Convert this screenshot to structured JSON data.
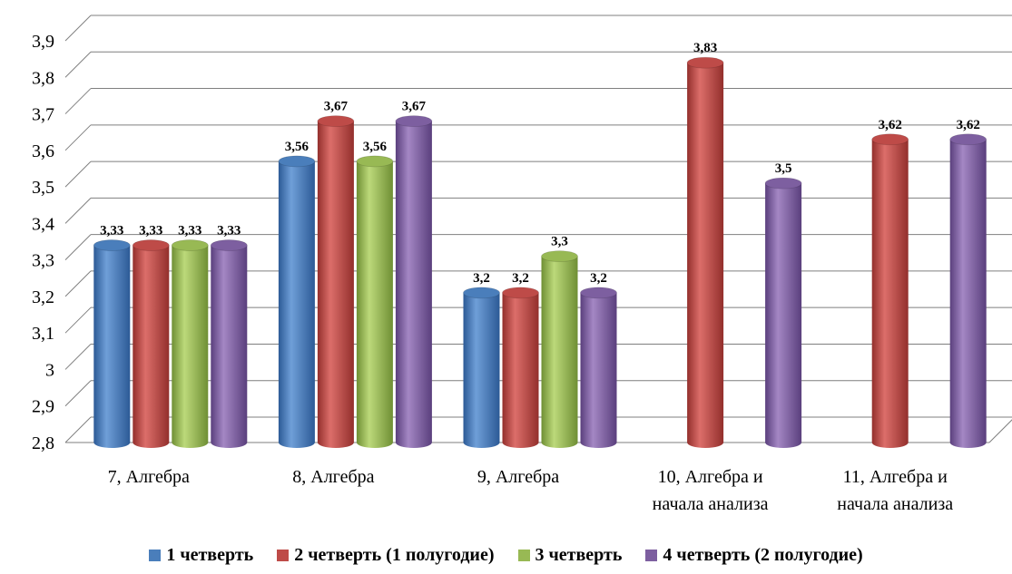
{
  "chart_data": {
    "type": "bar",
    "categories": [
      [
        "7, Алгебра"
      ],
      [
        "8, Алгебра"
      ],
      [
        "9, Алгебра"
      ],
      [
        "10, Алгебра и",
        "начала анализа"
      ],
      [
        "11, Алгебра и",
        "начала анализа"
      ]
    ],
    "series": [
      {
        "name": "1 четверть",
        "color": "#4a7ebb",
        "values": [
          3.33,
          3.56,
          3.2,
          null,
          null
        ],
        "labels": [
          "3,33",
          "3,56",
          "3,2",
          "",
          ""
        ]
      },
      {
        "name": "2 четверть (1 полугодие)",
        "color": "#be4b48",
        "values": [
          3.33,
          3.67,
          3.2,
          3.83,
          3.62
        ],
        "labels": [
          "3,33",
          "3,67",
          "3,2",
          "3,83",
          "3,62"
        ]
      },
      {
        "name": "3 четверть",
        "color": "#98b954",
        "values": [
          3.33,
          3.56,
          3.3,
          null,
          null
        ],
        "labels": [
          "3,33",
          "3,56",
          "3,3",
          "",
          ""
        ]
      },
      {
        "name": "4 четверть (2 полугодие)",
        "color": "#7d5fa0",
        "values": [
          3.33,
          3.67,
          3.2,
          3.5,
          3.62
        ],
        "labels": [
          "3,33",
          "3,67",
          "3,2",
          "3,5",
          "3,62"
        ]
      }
    ],
    "y_ticks": [
      "2,8",
      "2,9",
      "3",
      "3,1",
      "3,2",
      "3,3",
      "3,4",
      "3,5",
      "3,6",
      "3,7",
      "3,8",
      "3,9"
    ],
    "ylim": [
      2.8,
      3.9
    ],
    "grid": true,
    "legend_position": "bottom",
    "title": "",
    "xlabel": "",
    "ylabel": ""
  }
}
